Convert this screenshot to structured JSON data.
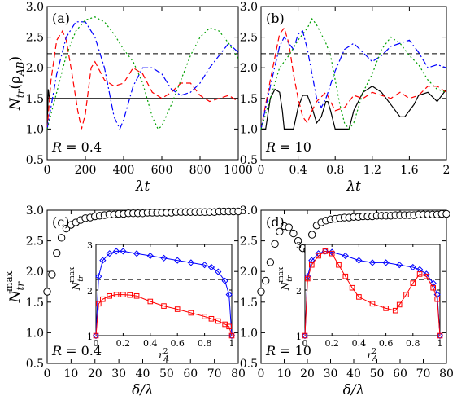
{
  "figure": {
    "panels": [
      {
        "id": "a",
        "tag": "(a)",
        "r_label": "R = 0.4"
      },
      {
        "id": "b",
        "tag": "(b)",
        "r_label": "R = 10"
      },
      {
        "id": "c",
        "tag": "(c)",
        "r_label": "R = 0.4"
      },
      {
        "id": "d",
        "tag": "(d)",
        "r_label": "R = 10"
      }
    ]
  },
  "chart_data": [
    {
      "id": "a",
      "type": "line",
      "tag": "(a)",
      "annotation": "R = 0.4",
      "xlabel": "λt",
      "ylabel": "N_tr(ρ_AB)",
      "xlim": [
        0,
        1000
      ],
      "ylim": [
        0.5,
        3.0
      ],
      "xticks": [
        "0",
        "200",
        "400",
        "600",
        "800",
        "1000"
      ],
      "yticks": [
        "0.5",
        "1.0",
        "1.5",
        "2.0",
        "2.5",
        "3.0"
      ],
      "reference_line": 2.23,
      "series": [
        {
          "style": "solid",
          "color": "#000000",
          "x": [
            0,
            6,
            12,
            18,
            30,
            60,
            100,
            200,
            400,
            600,
            800,
            1000
          ],
          "y": [
            1.0,
            1.65,
            1.5,
            1.5,
            1.5,
            1.5,
            1.5,
            1.5,
            1.5,
            1.5,
            1.5,
            1.5
          ]
        },
        {
          "style": "dashed",
          "color": "#ff0000",
          "x": [
            0,
            20,
            50,
            80,
            100,
            130,
            160,
            180,
            200,
            230,
            250,
            300,
            350,
            400,
            450,
            500,
            550,
            600,
            650,
            700,
            750,
            800,
            850,
            900,
            950,
            1000
          ],
          "y": [
            1.0,
            1.8,
            2.45,
            2.6,
            2.45,
            1.9,
            1.3,
            1.0,
            1.25,
            2.0,
            2.1,
            1.8,
            1.7,
            1.75,
            2.0,
            1.9,
            1.6,
            1.5,
            1.6,
            1.75,
            1.75,
            1.55,
            1.45,
            1.5,
            1.55,
            1.45
          ]
        },
        {
          "style": "dashdot",
          "color": "#0000ff",
          "x": [
            0,
            50,
            100,
            150,
            200,
            250,
            300,
            350,
            380,
            400,
            450,
            500,
            550,
            600,
            650,
            700,
            750,
            800,
            850,
            900,
            950,
            1000
          ],
          "y": [
            1.0,
            1.9,
            2.5,
            2.75,
            2.75,
            2.5,
            2.0,
            1.2,
            1.0,
            1.15,
            1.7,
            2.0,
            2.0,
            1.9,
            1.65,
            1.55,
            1.6,
            1.75,
            2.0,
            2.2,
            2.4,
            2.25
          ]
        },
        {
          "style": "dotted",
          "color": "#00a000",
          "x": [
            0,
            50,
            100,
            150,
            200,
            250,
            300,
            350,
            400,
            450,
            500,
            550,
            580,
            600,
            650,
            700,
            750,
            800,
            850,
            900,
            950,
            1000
          ],
          "y": [
            1.0,
            1.6,
            2.2,
            2.6,
            2.78,
            2.83,
            2.75,
            2.55,
            2.3,
            2.1,
            1.75,
            1.2,
            1.0,
            1.05,
            1.4,
            1.8,
            2.2,
            2.5,
            2.65,
            2.6,
            2.4,
            2.15
          ]
        }
      ]
    },
    {
      "id": "b",
      "type": "line",
      "tag": "(b)",
      "annotation": "R = 10",
      "xlabel": "λt",
      "ylabel": "",
      "xlim": [
        0,
        2
      ],
      "ylim": [
        0.5,
        3.0
      ],
      "xticks": [
        "0",
        "0.4",
        "0.8",
        "1.2",
        "1.6",
        "2"
      ],
      "yticks": [
        "0.5",
        "1.0",
        "1.5",
        "2.0",
        "2.5",
        "3.0"
      ],
      "reference_line": 2.23,
      "series": [
        {
          "style": "solid",
          "color": "#000000",
          "x": [
            0,
            0.05,
            0.08,
            0.1,
            0.15,
            0.2,
            0.23,
            0.25,
            0.3,
            0.35,
            0.4,
            0.45,
            0.5,
            0.55,
            0.6,
            0.65,
            0.7,
            0.72,
            0.75,
            0.8,
            0.85,
            0.9,
            0.95,
            1.0,
            1.1,
            1.2,
            1.3,
            1.4,
            1.5,
            1.55,
            1.6,
            1.65,
            1.7,
            1.8,
            1.9,
            2.0
          ],
          "y": [
            1.0,
            1.0,
            1.3,
            1.5,
            1.65,
            1.6,
            1.3,
            1.0,
            1.0,
            1.0,
            1.35,
            1.55,
            1.55,
            1.35,
            1.1,
            1.2,
            1.45,
            1.45,
            1.3,
            1.0,
            1.0,
            1.0,
            1.0,
            1.3,
            1.6,
            1.7,
            1.6,
            1.4,
            1.2,
            1.2,
            1.3,
            1.4,
            1.55,
            1.6,
            1.45,
            1.65
          ]
        },
        {
          "style": "dashed",
          "color": "#ff0000",
          "x": [
            0,
            0.1,
            0.2,
            0.25,
            0.3,
            0.35,
            0.4,
            0.45,
            0.5,
            0.55,
            0.6,
            0.7,
            0.8,
            0.9,
            1.0,
            1.1,
            1.2,
            1.3,
            1.4,
            1.5,
            1.6,
            1.7,
            1.8,
            1.9,
            2.0
          ],
          "y": [
            1.0,
            1.8,
            2.55,
            2.65,
            2.4,
            1.9,
            1.5,
            1.2,
            1.1,
            1.3,
            1.45,
            1.6,
            1.3,
            1.35,
            1.55,
            1.5,
            1.6,
            1.55,
            1.5,
            1.6,
            1.5,
            1.55,
            1.7,
            1.7,
            1.6
          ]
        },
        {
          "style": "dashdot",
          "color": "#0000ff",
          "x": [
            0,
            0.1,
            0.2,
            0.25,
            0.3,
            0.35,
            0.4,
            0.45,
            0.5,
            0.55,
            0.6,
            0.65,
            0.7,
            0.8,
            0.9,
            1.0,
            1.1,
            1.2,
            1.3,
            1.4,
            1.5,
            1.6,
            1.7,
            1.8,
            1.9,
            2.0
          ],
          "y": [
            1.0,
            1.7,
            2.35,
            2.5,
            2.4,
            2.3,
            2.55,
            2.6,
            2.3,
            1.9,
            1.5,
            1.35,
            1.5,
            1.95,
            2.3,
            2.4,
            2.25,
            2.1,
            2.2,
            2.35,
            2.4,
            2.45,
            2.25,
            2.0,
            2.05,
            2.0
          ]
        },
        {
          "style": "dotted",
          "color": "#00a000",
          "x": [
            0,
            0.1,
            0.2,
            0.3,
            0.4,
            0.5,
            0.55,
            0.6,
            0.7,
            0.75,
            0.8,
            0.85,
            0.9,
            0.95,
            1.0,
            1.05,
            1.1,
            1.2,
            1.3,
            1.4,
            1.5,
            1.6,
            1.7,
            1.8,
            1.9,
            2.0
          ],
          "y": [
            1.0,
            1.5,
            2.0,
            2.2,
            2.45,
            2.65,
            2.8,
            2.7,
            2.4,
            2.2,
            1.8,
            1.4,
            1.1,
            1.0,
            1.1,
            1.35,
            1.6,
            1.9,
            2.3,
            2.5,
            2.4,
            2.2,
            2.05,
            1.8,
            1.65,
            1.6
          ]
        }
      ]
    },
    {
      "id": "c",
      "type": "scatter",
      "tag": "(c)",
      "annotation": "R = 0.4",
      "xlabel": "δ/λ",
      "ylabel": "N_tr^max",
      "xlim": [
        0,
        80
      ],
      "ylim": [
        0.5,
        3.0
      ],
      "xticks": [
        "0",
        "10",
        "20",
        "30",
        "40",
        "50",
        "60",
        "70",
        "80"
      ],
      "yticks": [
        "0.5",
        "1.0",
        "1.5",
        "2.0",
        "2.5",
        "3.0"
      ],
      "x": [
        0,
        2,
        4,
        6,
        8,
        10,
        12,
        14,
        16,
        18,
        20,
        22,
        24,
        26,
        28,
        30,
        32,
        34,
        36,
        38,
        40,
        42,
        44,
        46,
        48,
        50,
        52,
        54,
        56,
        58,
        60,
        62,
        64,
        66,
        68,
        70,
        72,
        74,
        76,
        78,
        80
      ],
      "y": [
        1.67,
        1.95,
        2.3,
        2.55,
        2.7,
        2.76,
        2.8,
        2.84,
        2.87,
        2.88,
        2.9,
        2.91,
        2.92,
        2.93,
        2.93,
        2.94,
        2.94,
        2.95,
        2.95,
        2.95,
        2.95,
        2.96,
        2.96,
        2.96,
        2.96,
        2.96,
        2.96,
        2.97,
        2.97,
        2.97,
        2.97,
        2.97,
        2.97,
        2.97,
        2.97,
        2.97,
        2.98,
        2.98,
        2.98,
        2.98,
        2.98
      ],
      "inset": {
        "xlabel": "r_A^2",
        "ylabel": "N_tr^max",
        "xlim": [
          0,
          1
        ],
        "ylim": [
          1,
          3
        ],
        "xticks": [
          "0",
          "0.2",
          "0.4",
          "0.6",
          "0.8",
          "1"
        ],
        "yticks": [
          "1",
          "2",
          "3"
        ],
        "reference_line": 2.23,
        "series": [
          {
            "marker": "diamond",
            "color": "#0000ff",
            "x": [
              0,
              0.02,
              0.05,
              0.1,
              0.15,
              0.2,
              0.3,
              0.4,
              0.5,
              0.6,
              0.7,
              0.8,
              0.85,
              0.9,
              0.95,
              0.98,
              1
            ],
            "y": [
              1.0,
              2.3,
              2.65,
              2.8,
              2.85,
              2.85,
              2.8,
              2.75,
              2.7,
              2.65,
              2.6,
              2.55,
              2.5,
              2.4,
              2.2,
              1.9,
              1.0
            ]
          },
          {
            "marker": "square",
            "color": "#ff0000",
            "x": [
              0,
              0.02,
              0.05,
              0.1,
              0.15,
              0.2,
              0.25,
              0.3,
              0.4,
              0.5,
              0.6,
              0.7,
              0.8,
              0.85,
              0.9,
              0.95,
              0.98,
              1
            ],
            "y": [
              1.0,
              1.7,
              1.8,
              1.87,
              1.9,
              1.9,
              1.89,
              1.87,
              1.75,
              1.65,
              1.58,
              1.5,
              1.42,
              1.37,
              1.32,
              1.25,
              1.2,
              1.0
            ]
          }
        ]
      }
    },
    {
      "id": "d",
      "type": "scatter",
      "tag": "(d)",
      "annotation": "R = 10",
      "xlabel": "δ/λ",
      "ylabel": "",
      "xlim": [
        0,
        80
      ],
      "ylim": [
        0.5,
        3.0
      ],
      "xticks": [
        "0",
        "10",
        "20",
        "30",
        "40",
        "50",
        "60",
        "70",
        "80"
      ],
      "yticks": [
        "0.5",
        "1.0",
        "1.5",
        "2.0",
        "2.5",
        "3.0"
      ],
      "x": [
        0,
        2,
        4,
        6,
        8,
        10,
        12,
        14,
        16,
        18,
        20,
        22,
        24,
        26,
        28,
        30,
        32,
        34,
        36,
        38,
        40,
        42,
        44,
        46,
        48,
        50,
        52,
        54,
        56,
        58,
        60,
        62,
        64,
        66,
        68,
        70,
        72,
        74,
        76,
        78,
        80
      ],
      "y": [
        1.67,
        1.85,
        2.15,
        2.45,
        2.65,
        2.74,
        2.72,
        2.62,
        2.5,
        2.38,
        2.35,
        2.6,
        2.75,
        2.8,
        2.83,
        2.85,
        2.86,
        2.87,
        2.88,
        2.88,
        2.89,
        2.89,
        2.9,
        2.9,
        2.9,
        2.91,
        2.91,
        2.91,
        2.91,
        2.92,
        2.92,
        2.92,
        2.92,
        2.92,
        2.93,
        2.93,
        2.93,
        2.93,
        2.93,
        2.94,
        2.94
      ],
      "inset": {
        "xlabel": "r_A^2",
        "ylabel": "N_tr^max",
        "xlim": [
          0,
          1
        ],
        "ylim": [
          1,
          3
        ],
        "xticks": [
          "0",
          "0.2",
          "0.4",
          "0.6",
          "0.8",
          "1"
        ],
        "yticks": [
          "1",
          "2",
          "3"
        ],
        "reference_line": 2.23,
        "series": [
          {
            "marker": "diamond",
            "color": "#0000ff",
            "x": [
              0,
              0.02,
              0.05,
              0.1,
              0.15,
              0.2,
              0.3,
              0.4,
              0.5,
              0.6,
              0.7,
              0.8,
              0.85,
              0.9,
              0.95,
              0.98,
              1
            ],
            "y": [
              1.0,
              2.3,
              2.65,
              2.8,
              2.85,
              2.83,
              2.75,
              2.65,
              2.6,
              2.6,
              2.55,
              2.5,
              2.45,
              2.35,
              2.15,
              1.9,
              1.0
            ]
          },
          {
            "marker": "square",
            "color": "#ff0000",
            "x": [
              0,
              0.02,
              0.05,
              0.1,
              0.15,
              0.2,
              0.25,
              0.3,
              0.35,
              0.4,
              0.5,
              0.6,
              0.67,
              0.7,
              0.75,
              0.8,
              0.85,
              0.9,
              0.95,
              0.98,
              1
            ],
            "y": [
              1.0,
              2.25,
              2.55,
              2.75,
              2.85,
              2.8,
              2.55,
              2.3,
              2.05,
              1.85,
              1.7,
              1.6,
              1.55,
              1.68,
              1.9,
              2.15,
              2.35,
              2.3,
              2.05,
              1.8,
              1.0
            ]
          }
        ]
      }
    }
  ]
}
